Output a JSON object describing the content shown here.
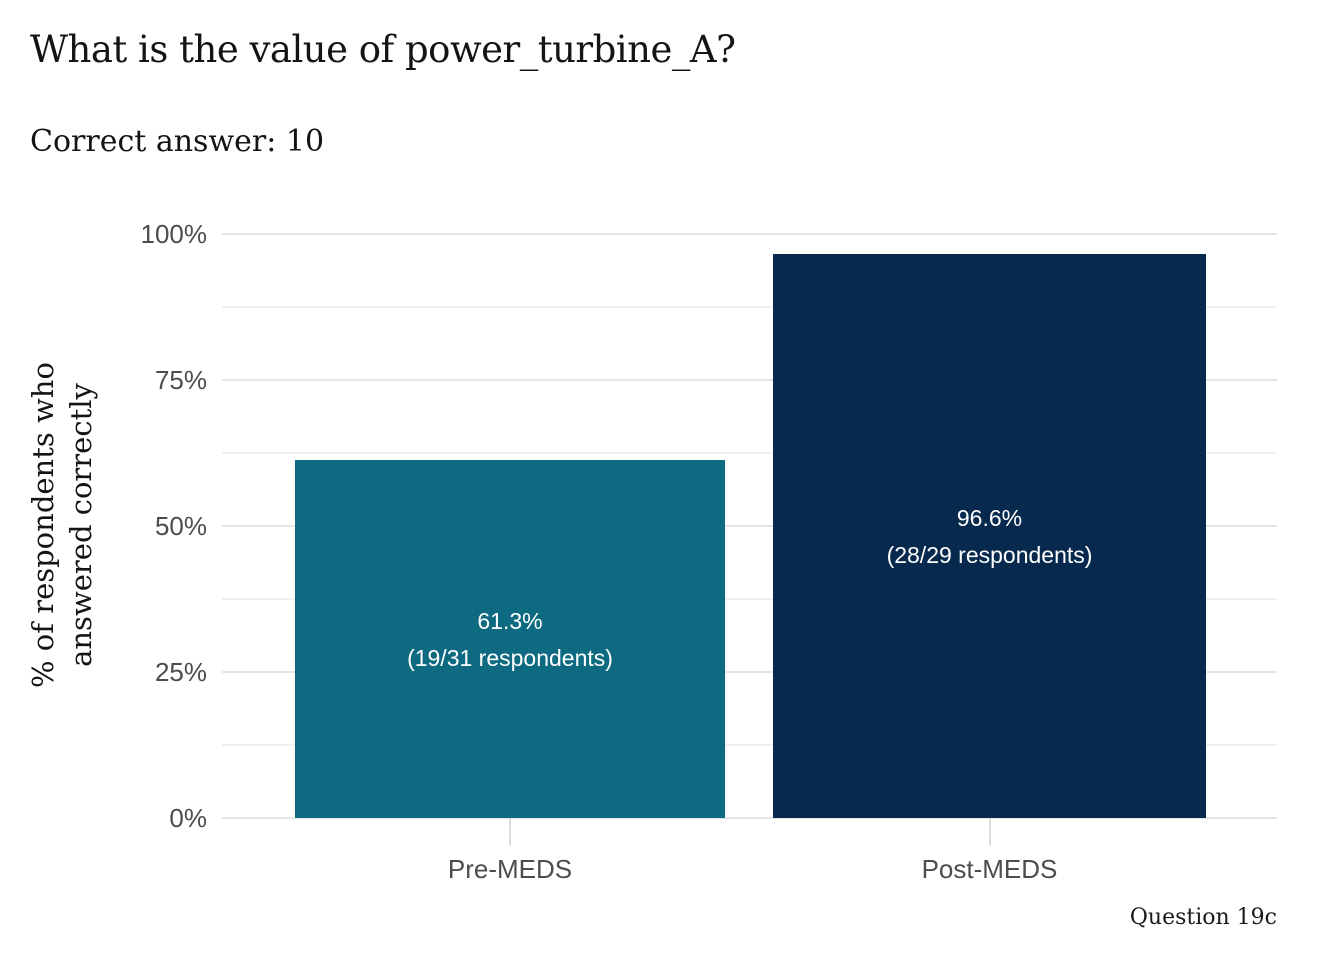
{
  "header": {
    "title": "What is the value of power_turbine_A?",
    "subtitle": "Correct answer: 10"
  },
  "colors": {
    "background": "#ffffff",
    "pre_bar": "#0d6a80",
    "post_bar": "#07294d",
    "grid_major": "#e5e5e5",
    "grid_minor": "#f0f0f0",
    "axis_tick": "#dcdcdc",
    "axis_text": "#4d4d4d",
    "heading_text": "#141414",
    "bar_label_text": "#ffffff"
  },
  "chart_data": {
    "type": "bar",
    "title": "What is the value of power_turbine_A?",
    "subtitle": "Correct answer: 10",
    "caption": "Question 19c",
    "categories": [
      "Pre-MEDS",
      "Post-MEDS"
    ],
    "values": [
      61.3,
      96.6
    ],
    "bar_colors": [
      "#0d6a80",
      "#07294d"
    ],
    "bar_labels": [
      {
        "pct": "61.3%",
        "count": "(19/31 respondents)"
      },
      {
        "pct": "96.6%",
        "count": "(28/29 respondents)"
      }
    ],
    "ylabel": "% of respondents who answered correctly",
    "ylabel_lines": [
      "% of respondents who",
      "answered correctly"
    ],
    "ylim": [
      0,
      100
    ],
    "yticks": [
      0,
      25,
      50,
      75,
      100
    ],
    "ytick_labels": [
      "0%",
      "25%",
      "50%",
      "75%",
      "100%"
    ],
    "minor_yticks": [
      12.5,
      37.5,
      62.5,
      87.5
    ],
    "grid": "horizontal major and minor, no vertical grid",
    "legend": "none"
  }
}
